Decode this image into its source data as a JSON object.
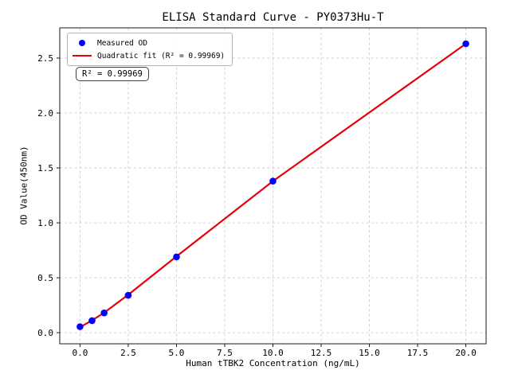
{
  "title": "ELISA Standard Curve - PY0373Hu-T",
  "colors": {
    "scatter": "#0000ff",
    "fit_line": "#e8000b",
    "grid": "#cccccc",
    "spine": "#1a1a1a",
    "legend_border": "#b3b3b3",
    "annotation_border": "#404040",
    "background": "#ffffff"
  },
  "chart_data": {
    "type": "scatter",
    "title": "ELISA Standard Curve - PY0373Hu-T",
    "xlabel": "Human tTBK2 Concentration (ng/mL)",
    "ylabel": "OD Value(450nm)",
    "xlim": [
      -1.05,
      21.05
    ],
    "ylim": [
      -0.101,
      2.775
    ],
    "x_ticks": [
      0,
      2.5,
      5,
      7.5,
      10,
      12.5,
      15,
      17.5,
      20
    ],
    "x_tick_labels": [
      "0.0",
      "2.5",
      "5.0",
      "7.5",
      "10.0",
      "12.5",
      "15.0",
      "17.5",
      "20.0"
    ],
    "y_ticks": [
      0,
      0.5,
      1,
      1.5,
      2,
      2.5
    ],
    "y_tick_labels": [
      "0.0",
      "0.5",
      "1.0",
      "1.5",
      "2.0",
      "2.5"
    ],
    "grid": true,
    "grid_style": "dashed",
    "legend_position": "upper-left",
    "series": [
      {
        "name": "Measured OD",
        "type": "scatter",
        "color": "#0000ff",
        "x": [
          0,
          0.625,
          1.25,
          2.5,
          5,
          10,
          20
        ],
        "y": [
          0.055,
          0.11,
          0.18,
          0.34,
          0.69,
          1.38,
          2.63
        ]
      },
      {
        "name": "Quadratic fit (R² = 0.99969)",
        "type": "line",
        "color": "#e8000b",
        "x": [
          0,
          0.625,
          1.25,
          2.5,
          5,
          10,
          20
        ],
        "y": [
          0.05,
          0.112,
          0.182,
          0.345,
          0.695,
          1.38,
          2.63
        ]
      }
    ],
    "fit": {
      "type": "quadratic",
      "r_squared": 0.99969
    },
    "annotation": "R² = 0.99969"
  },
  "legend": {
    "items": [
      {
        "label": "Measured OD",
        "marker": "dot",
        "color": "#0000ff"
      },
      {
        "label": "Quadratic fit (R² = 0.99969)",
        "marker": "line",
        "color": "#e8000b"
      }
    ]
  },
  "annotation_box": {
    "text": "R² = 0.99969"
  }
}
